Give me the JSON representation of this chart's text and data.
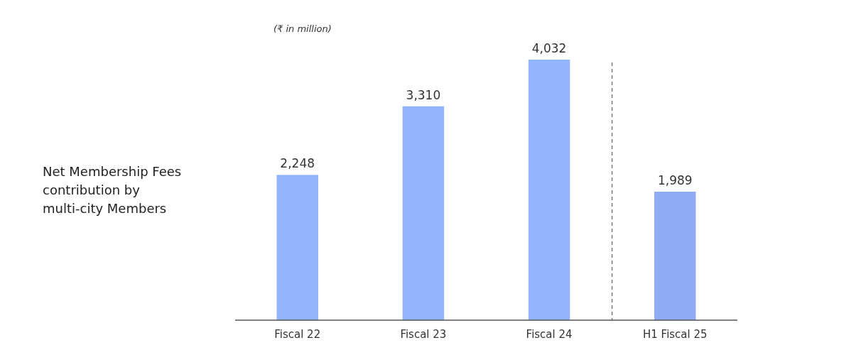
{
  "chart_data": {
    "type": "bar",
    "title": "Net Membership Fees contribution by multi-city Members",
    "subtitle": "(₹ in million)",
    "categories": [
      "Fiscal 22",
      "Fiscal 23",
      "Fiscal 24",
      "H1 Fiscal 25"
    ],
    "values": [
      2248,
      3310,
      4032,
      1989
    ],
    "value_labels": [
      "2,248",
      "3,310",
      "4,032",
      "1,989"
    ],
    "colors": [
      "#93b4fb",
      "#93b4fb",
      "#93b4fb",
      "#8fabf3"
    ]
  }
}
